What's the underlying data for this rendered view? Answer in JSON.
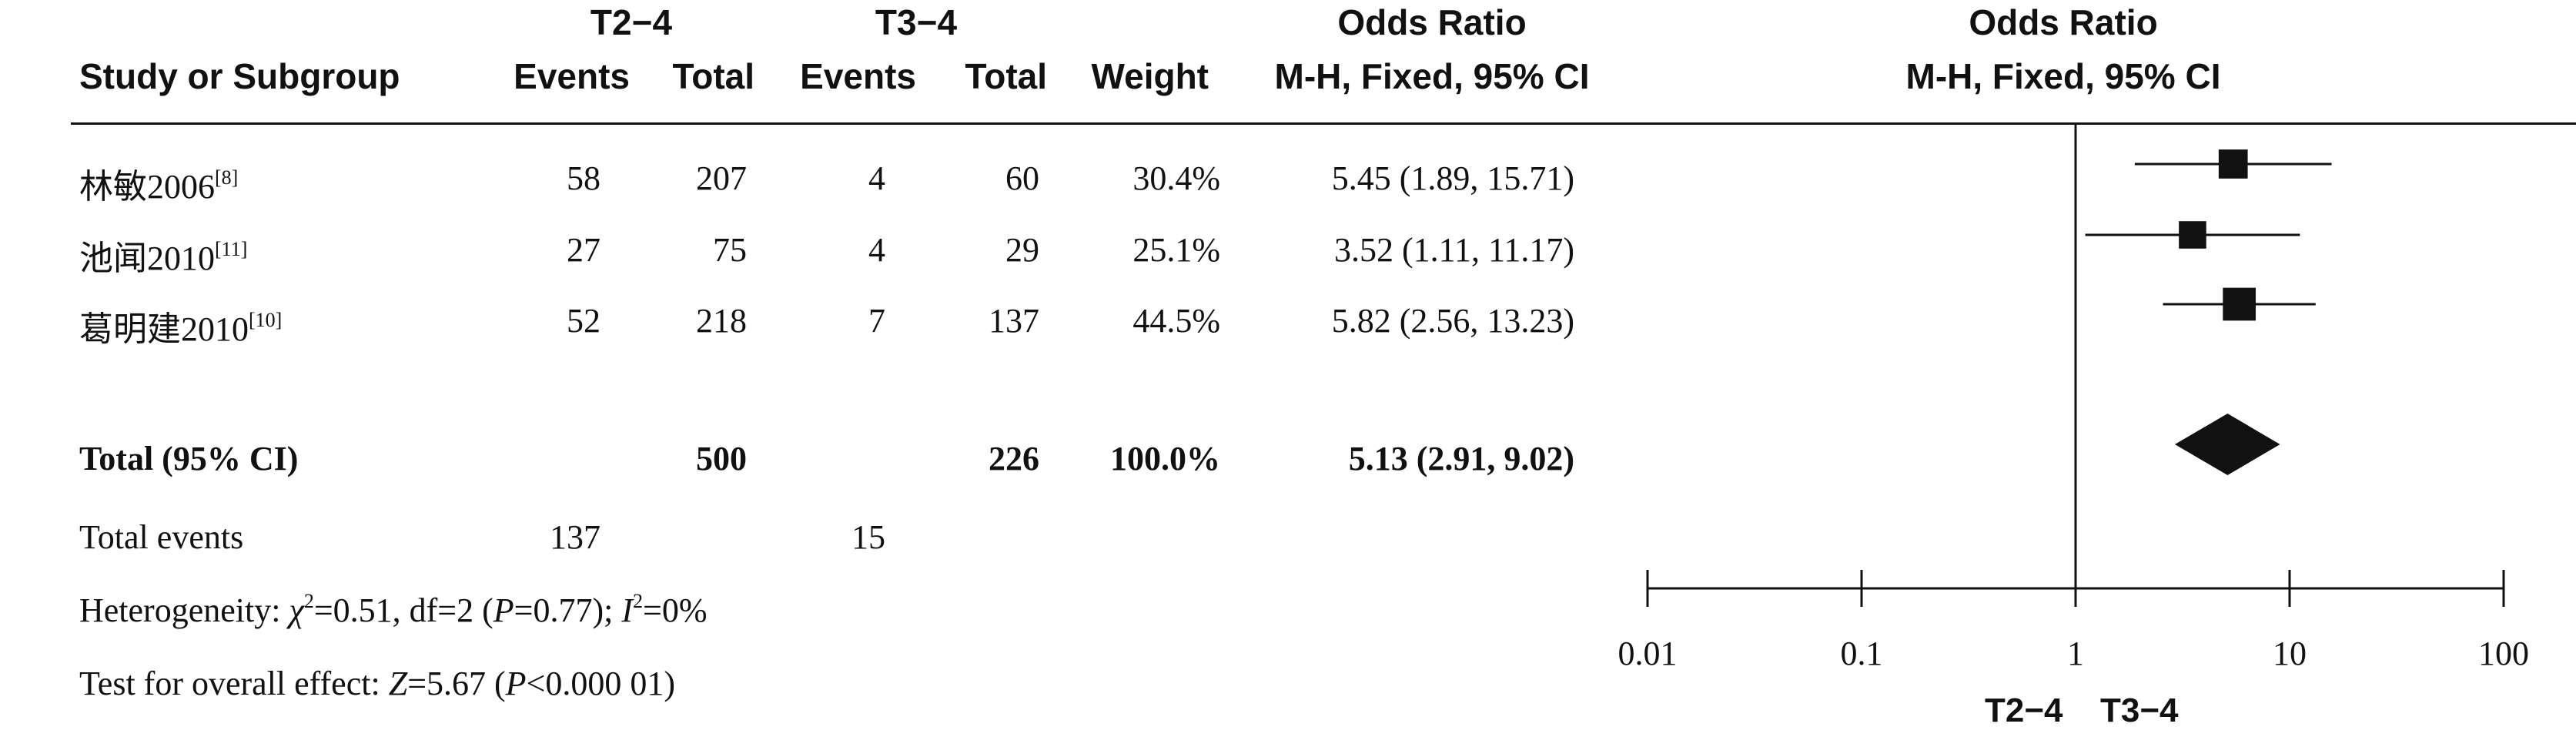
{
  "headers": {
    "study": "Study or Subgroup",
    "group1": "T2−4",
    "group2": "T3−4",
    "events": "Events",
    "total": "Total",
    "weight": "Weight",
    "or_title": "Odds Ratio",
    "or_method": "M-H, Fixed, 95% CI"
  },
  "studies": [
    {
      "name": "林敏2006",
      "ref": "[8]",
      "e1": "58",
      "t1": "207",
      "e2": "4",
      "t2": "60",
      "weight": "30.4%",
      "or_text": "5.45 (1.89, 15.71)"
    },
    {
      "name": "池闻2010",
      "ref": "[11]",
      "e1": "27",
      "t1": "75",
      "e2": "4",
      "t2": "29",
      "weight": "25.1%",
      "or_text": "3.52 (1.11, 11.17)"
    },
    {
      "name": "葛明建2010",
      "ref": "[10]",
      "e1": "52",
      "t1": "218",
      "e2": "7",
      "t2": "137",
      "weight": "44.5%",
      "or_text": "5.82 (2.56, 13.23)"
    }
  ],
  "total": {
    "label": "Total (95% CI)",
    "t1": "500",
    "t2": "226",
    "weight": "100.0%",
    "or_text": "5.13 (2.91, 9.02)"
  },
  "total_events": {
    "label": "Total events",
    "e1": "137",
    "e2": "15"
  },
  "heterogeneity": {
    "prefix": "Heterogeneity: ",
    "chi_sym": "χ",
    "chi_val": "=0.51, df=2 (",
    "p_sym": "P",
    "p_val": "=0.77); ",
    "i_sym": "I",
    "i_val": "=0%"
  },
  "overall": {
    "prefix": "Test for overall effect: ",
    "z_sym": "Z",
    "z_val": "=5.67 (",
    "p_sym": "P",
    "p_val": "<0.000 01)"
  },
  "chart_data": {
    "type": "scatter",
    "title": "Odds Ratio",
    "subtitle": "M-H, Fixed, 95% CI",
    "xscale": "log",
    "xlim": [
      0.01,
      100
    ],
    "ticks": [
      "0.01",
      "0.1",
      "1",
      "10",
      "100"
    ],
    "tick_values": [
      0.01,
      0.1,
      1,
      10,
      100
    ],
    "reference_line": 1,
    "points": [
      {
        "name": "林敏2006",
        "or": 5.45,
        "low": 1.89,
        "high": 15.71,
        "weight": 30.4
      },
      {
        "name": "池闻2010",
        "or": 3.52,
        "low": 1.11,
        "high": 11.17,
        "weight": 25.1
      },
      {
        "name": "葛明建2010",
        "or": 5.82,
        "low": 2.56,
        "high": 13.23,
        "weight": 44.5
      }
    ],
    "pooled": {
      "or": 5.13,
      "low": 2.91,
      "high": 9.02
    },
    "favours_left": "T2−4",
    "favours_right": "T3−4"
  }
}
